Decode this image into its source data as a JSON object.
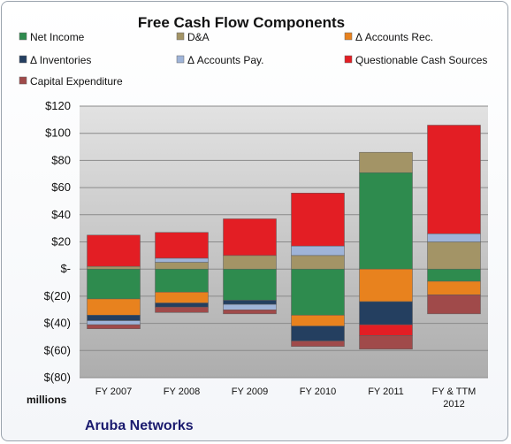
{
  "chart_data": {
    "type": "bar",
    "stacked": true,
    "title": "Free Cash Flow Components",
    "y_unit_label": "millions",
    "company_label": "Aruba Networks",
    "categories": [
      "FY 2007",
      "FY 2008",
      "FY 2009",
      "FY 2010",
      "FY 2011",
      "FY & TTM 2012"
    ],
    "ylim": [
      -80,
      120
    ],
    "yticks": [
      -80,
      -60,
      -40,
      -20,
      0,
      20,
      40,
      60,
      80,
      100,
      120
    ],
    "ytick_labels": [
      "$(80)",
      "$(60)",
      "$(40)",
      "$(20)",
      "$-",
      "$20",
      "$40",
      "$60",
      "$80",
      "$100",
      "$120"
    ],
    "grid": true,
    "legend_position": "top",
    "series": [
      {
        "name": "Net Income",
        "color": "#2e8b4e",
        "values": [
          -22,
          -17,
          -23,
          -34,
          71,
          -9
        ]
      },
      {
        "name": "D&A",
        "color": "#a39466",
        "values": [
          2,
          5,
          10,
          10,
          15,
          20
        ]
      },
      {
        "name": "Δ Accounts Rec.",
        "color": "#e8821e",
        "values": [
          -12,
          -8,
          null,
          -8,
          -24,
          -10
        ]
      },
      {
        "name": "Δ Inventories",
        "color": "#243f60",
        "values": [
          -4,
          -3,
          -3,
          -11,
          -17,
          null
        ]
      },
      {
        "name": "Δ Accounts Pay.",
        "color": "#9fb4d8",
        "values": [
          -3,
          3,
          -4,
          7,
          null,
          6
        ]
      },
      {
        "name": "Questionable Cash Sources",
        "color": "#e31e24",
        "values": [
          23,
          19,
          27,
          39,
          -8,
          80
        ]
      },
      {
        "name": "Capital Expenditure",
        "color": "#a04a4a",
        "values": [
          -3,
          -4,
          -3,
          -4,
          -10,
          -14
        ]
      }
    ]
  }
}
